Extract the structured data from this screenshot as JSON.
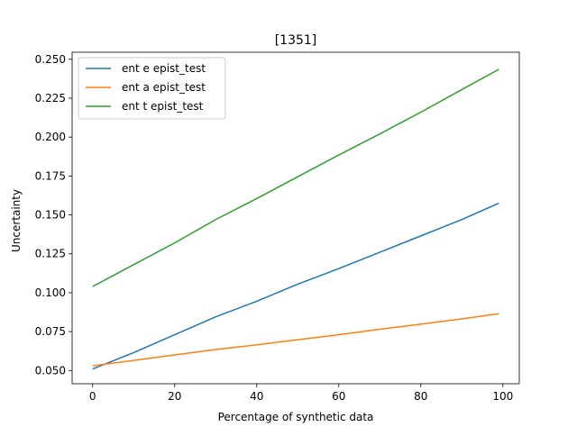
{
  "chart_data": {
    "type": "line",
    "title": "[1351]",
    "xlabel": "Percentage of synthetic data",
    "ylabel": "Uncertainty",
    "xlim": [
      -5,
      104
    ],
    "ylim": [
      0.0415,
      0.2545
    ],
    "xticks": [
      0,
      20,
      40,
      60,
      80,
      100
    ],
    "xtick_labels": [
      "0",
      "20",
      "40",
      "60",
      "80",
      "100"
    ],
    "yticks": [
      0.05,
      0.075,
      0.1,
      0.125,
      0.15,
      0.175,
      0.2,
      0.225,
      0.25
    ],
    "ytick_labels": [
      "0.050",
      "0.075",
      "0.100",
      "0.125",
      "0.150",
      "0.175",
      "0.200",
      "0.225",
      "0.250"
    ],
    "grid": false,
    "legend_position": "upper-left",
    "x": [
      0,
      10,
      20,
      30,
      40,
      50,
      60,
      70,
      80,
      90,
      99
    ],
    "series": [
      {
        "name": "ent e epist_test",
        "color": "#1f77b4",
        "values": [
          0.051,
          0.0615,
          0.073,
          0.0845,
          0.0945,
          0.1055,
          0.1155,
          0.126,
          0.1365,
          0.147,
          0.1575
        ]
      },
      {
        "name": "ent a epist_test",
        "color": "#ff7f0e",
        "values": [
          0.053,
          0.0565,
          0.06,
          0.0635,
          0.0665,
          0.0698,
          0.073,
          0.0765,
          0.0798,
          0.0832,
          0.0865
        ]
      },
      {
        "name": "ent t epist_test",
        "color": "#2ca02c",
        "values": [
          0.104,
          0.118,
          0.132,
          0.147,
          0.1605,
          0.1745,
          0.1885,
          0.202,
          0.216,
          0.2305,
          0.2435
        ]
      }
    ]
  }
}
